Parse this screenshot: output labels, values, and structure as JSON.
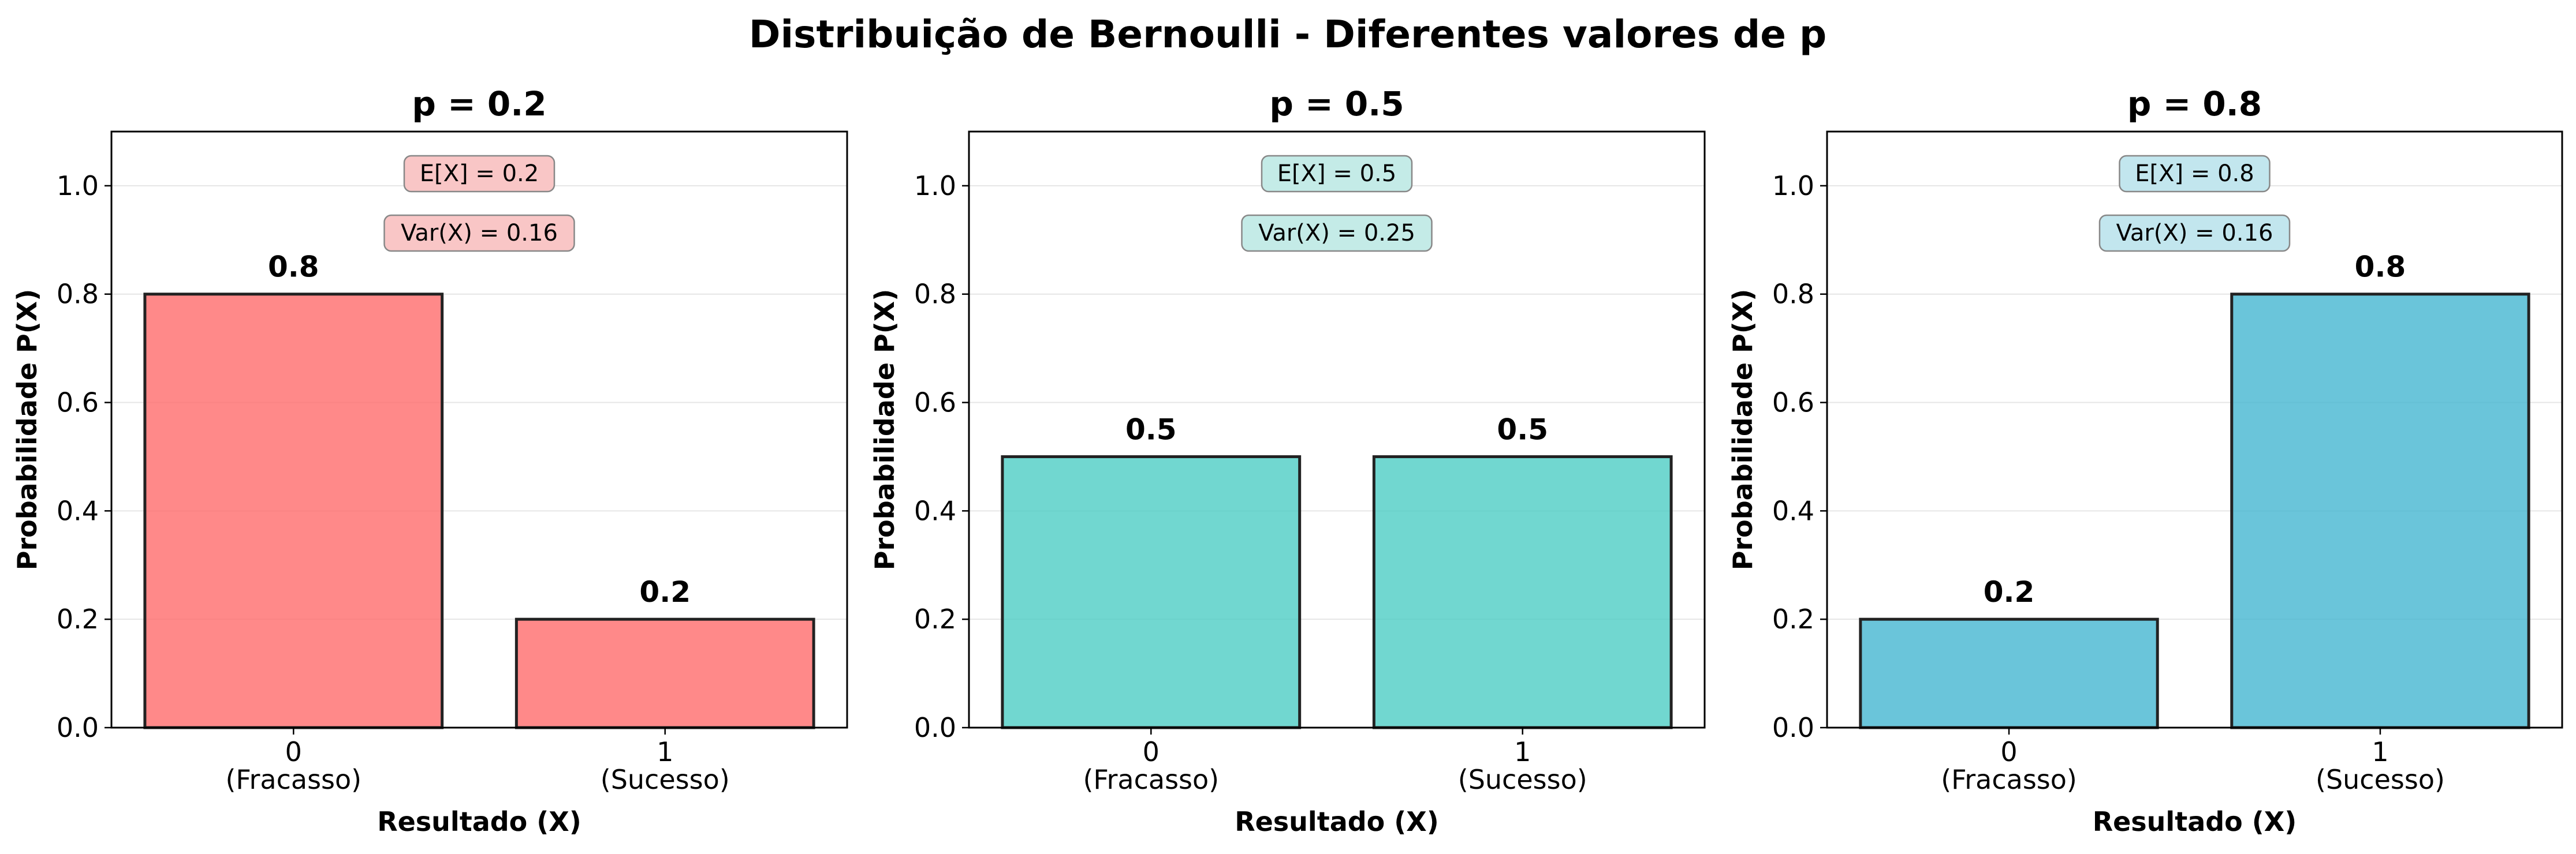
{
  "title": "Distribuição de Bernoulli - Diferentes valores de p",
  "chart_data": [
    {
      "type": "bar",
      "title": "p = 0.2",
      "xlabel": "Resultado (X)",
      "ylabel": "Probabilidade P(X)",
      "categories": [
        "0\n(Fracasso)",
        "1\n(Sucesso)"
      ],
      "values": [
        0.8,
        0.2
      ],
      "value_labels": [
        "0.8",
        "0.2"
      ],
      "ylim": [
        0,
        1.1
      ],
      "yticks": [
        "0.0",
        "0.2",
        "0.4",
        "0.6",
        "0.8",
        "1.0"
      ],
      "grid": "y",
      "color": "#FF6B6B",
      "annotations": [
        "E[X] = 0.2",
        "Var(X) = 0.16"
      ],
      "annotation_bg": "#F9C6C6"
    },
    {
      "type": "bar",
      "title": "p = 0.5",
      "xlabel": "Resultado (X)",
      "ylabel": "Probabilidade P(X)",
      "categories": [
        "0\n(Fracasso)",
        "1\n(Sucesso)"
      ],
      "values": [
        0.5,
        0.5
      ],
      "value_labels": [
        "0.5",
        "0.5"
      ],
      "ylim": [
        0,
        1.1
      ],
      "yticks": [
        "0.0",
        "0.2",
        "0.4",
        "0.6",
        "0.8",
        "1.0"
      ],
      "grid": "y",
      "color": "#4ECDC4",
      "annotations": [
        "E[X] = 0.5",
        "Var(X) = 0.25"
      ],
      "annotation_bg": "#C4EBE7"
    },
    {
      "type": "bar",
      "title": "p = 0.8",
      "xlabel": "Resultado (X)",
      "ylabel": "Probabilidade P(X)",
      "categories": [
        "0\n(Fracasso)",
        "1\n(Sucesso)"
      ],
      "values": [
        0.2,
        0.8
      ],
      "value_labels": [
        "0.2",
        "0.8"
      ],
      "ylim": [
        0,
        1.1
      ],
      "yticks": [
        "0.0",
        "0.2",
        "0.4",
        "0.6",
        "0.8",
        "1.0"
      ],
      "grid": "y",
      "color": "#45B7D1",
      "annotations": [
        "E[X] = 0.8",
        "Var(X) = 0.16"
      ],
      "annotation_bg": "#C2E6EE"
    }
  ]
}
